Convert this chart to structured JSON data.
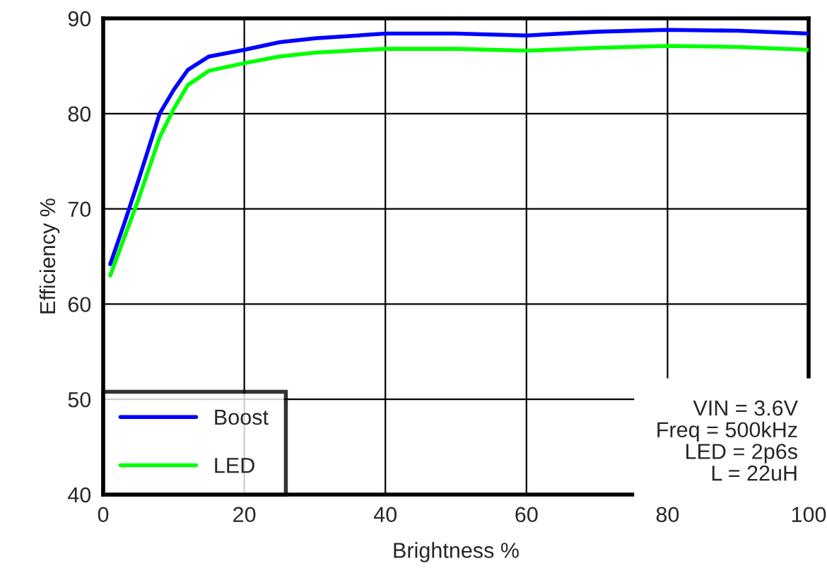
{
  "chart_data": {
    "type": "line",
    "xlabel": "Brightness %",
    "ylabel": "Efficiency %",
    "x": [
      1,
      3,
      5,
      8,
      10,
      12,
      15,
      20,
      25,
      30,
      40,
      50,
      60,
      70,
      80,
      90,
      100
    ],
    "series": [
      {
        "name": "Boost",
        "color": "#0000ff",
        "values": [
          64.2,
          68.5,
          73,
          80,
          82.5,
          84.6,
          86,
          86.7,
          87.5,
          87.9,
          88.4,
          88.4,
          88.2,
          88.6,
          88.8,
          88.7,
          88.4
        ]
      },
      {
        "name": "LED",
        "color": "#00ff00",
        "values": [
          63,
          67,
          71,
          77.5,
          80.5,
          83,
          84.5,
          85.3,
          86,
          86.4,
          86.8,
          86.8,
          86.6,
          86.9,
          87.1,
          87,
          86.7
        ]
      }
    ],
    "xlim": [
      0,
      100
    ],
    "ylim": [
      40,
      90
    ],
    "xticks": [
      0,
      20,
      40,
      60,
      80,
      100
    ],
    "yticks": [
      40,
      50,
      60,
      70,
      80,
      90
    ],
    "annotations": [
      "VIN = 3.6V\nFreq = 500kHz\nLED = 2p6s\nL = 22uH"
    ],
    "grid": true,
    "legend": "bottom left",
    "marker": "none",
    "line_style": "solid"
  }
}
